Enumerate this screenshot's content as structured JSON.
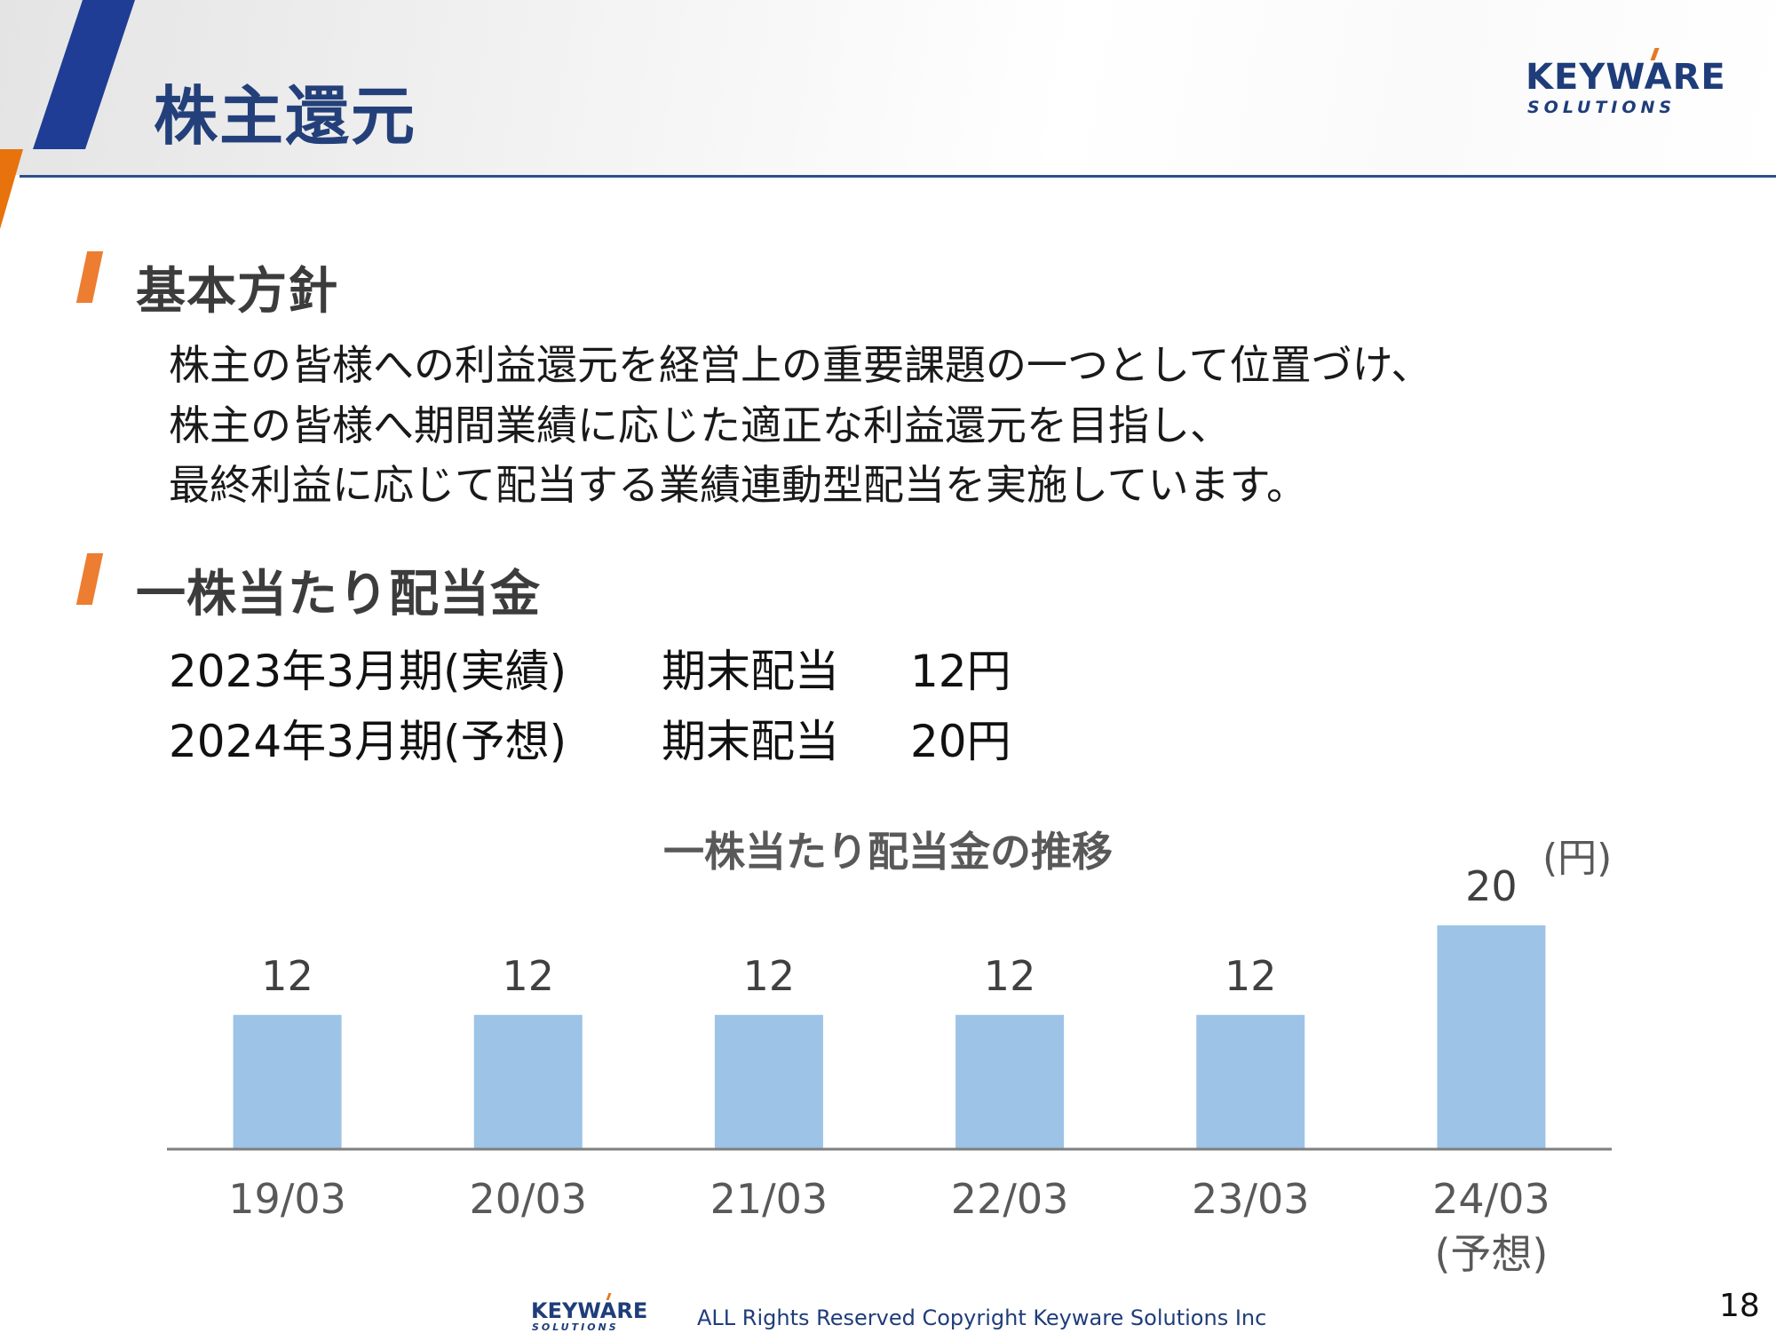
{
  "header": {
    "title": "株主還元",
    "logo_main": "KEYWARE",
    "logo_sub": "SOLUTIONS"
  },
  "policy": {
    "heading": "基本方針",
    "lines": [
      "株主の皆様への利益還元を経営上の重要課題の一つとして位置づけ、",
      "株主の皆様へ期間業績に応じた適正な利益還元を目指し、",
      "最終利益に応じて配当する業績連動型配当を実施しています。"
    ]
  },
  "dividend": {
    "heading": "一株当たり配当金",
    "rows": [
      {
        "period": "2023年3月期(実績)",
        "type": "期末配当",
        "amount": "12円"
      },
      {
        "period": "2024年3月期(予想)",
        "type": "期末配当",
        "amount": "20円"
      }
    ]
  },
  "chart_data": {
    "type": "bar",
    "title": "一株当たり配当金の推移",
    "unit": "(円)",
    "categories": [
      "19/03",
      "20/03",
      "21/03",
      "22/03",
      "23/03",
      "24/03"
    ],
    "category_notes": [
      "",
      "",
      "",
      "",
      "",
      "(予想)"
    ],
    "values": [
      12,
      12,
      12,
      12,
      12,
      20
    ],
    "data_labels": [
      "12",
      "12",
      "12",
      "12",
      "12",
      "20"
    ],
    "ylim": [
      0,
      20
    ],
    "grid": false,
    "bar_color": "#9dc3e6",
    "axis_color": "#7f7f7f",
    "label_color": "#404040"
  },
  "footer": {
    "logo_main": "KEYWARE",
    "logo_sub": "SOLUTIONS",
    "copyright": "ALL Rights Reserved Copyright Keyware Solutions Inc",
    "page_number": "18"
  },
  "colors": {
    "title": "#24407a",
    "accent_orange": "#ed7d31",
    "navy": "#1f3d7a"
  }
}
